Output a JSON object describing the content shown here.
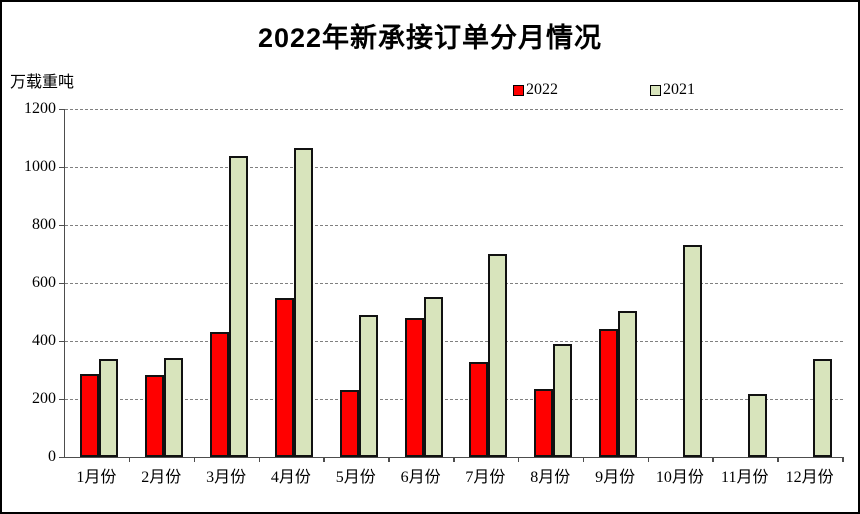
{
  "title": "2022年新承接订单分月情况",
  "y_axis_unit": "万载重吨",
  "colors": {
    "series_2022": "#FF0000",
    "series_2021": "#D8E4BC",
    "bar_border": "#111111",
    "axis": "#4d4d4d",
    "gridline": "#808080"
  },
  "chart_data": {
    "type": "bar",
    "title": "2022年新承接订单分月情况",
    "ylabel": "万载重吨",
    "categories": [
      "1月份",
      "2月份",
      "3月份",
      "4月份",
      "5月份",
      "6月份",
      "7月份",
      "8月份",
      "9月份",
      "10月份",
      "11月份",
      "12月份"
    ],
    "series": [
      {
        "name": "2022",
        "color": "#FF0000",
        "values": [
          285,
          284,
          430,
          549,
          230,
          478,
          328,
          233,
          442,
          null,
          null,
          null
        ]
      },
      {
        "name": "2021",
        "color": "#D8E4BC",
        "values": [
          339,
          343,
          1039,
          1066,
          488,
          551,
          699,
          390,
          505,
          732,
          217,
          338
        ]
      }
    ],
    "ylim": [
      0,
      1200
    ],
    "yticks": [
      0,
      200,
      400,
      600,
      800,
      1000,
      1200
    ],
    "grid": "horizontal-dashed",
    "legend_position": "top-center"
  }
}
